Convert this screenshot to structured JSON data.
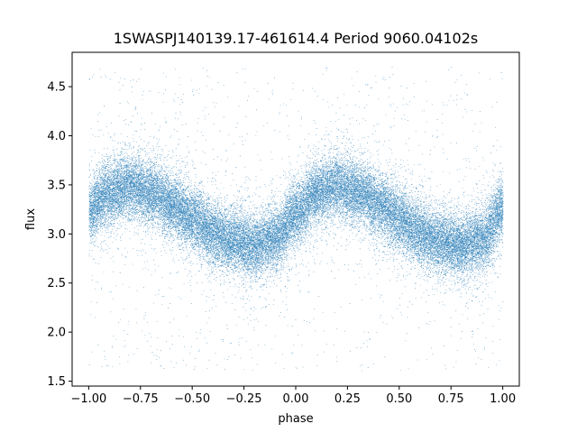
{
  "chart_data": {
    "type": "scatter",
    "title": "1SWASPJ140139.17-461614.4 Period 9060.04102s",
    "xlabel": "phase",
    "ylabel": "flux",
    "xlim": [
      -1.08,
      1.08
    ],
    "ylim": [
      1.45,
      4.85
    ],
    "xticks": [
      -1.0,
      -0.75,
      -0.5,
      -0.25,
      0.0,
      0.25,
      0.5,
      0.75,
      1.0
    ],
    "xtick_labels": [
      "−1.00",
      "−0.75",
      "−0.50",
      "−0.25",
      "0.00",
      "0.25",
      "0.50",
      "0.75",
      "1.00"
    ],
    "yticks": [
      1.5,
      2.0,
      2.5,
      3.0,
      3.5,
      4.0,
      4.5
    ],
    "ytick_labels": [
      "1.5",
      "2.0",
      "2.5",
      "3.0",
      "3.5",
      "4.0",
      "4.5"
    ],
    "grid": false,
    "point_color": "#1f77b4",
    "series": [
      {
        "phase_range": [
          -1.0,
          1.0
        ],
        "curve_phase": [
          -1.0,
          -0.9,
          -0.8,
          -0.7,
          -0.6,
          -0.5,
          -0.4,
          -0.3,
          -0.2,
          -0.1,
          0.0,
          0.1,
          0.2,
          0.3,
          0.4,
          0.5,
          0.6,
          0.7,
          0.8,
          0.9,
          1.0
        ],
        "curve_flux": [
          3.25,
          3.42,
          3.48,
          3.42,
          3.3,
          3.15,
          3.0,
          2.92,
          2.88,
          2.95,
          3.2,
          3.42,
          3.48,
          3.42,
          3.3,
          3.15,
          3.0,
          2.92,
          2.88,
          2.95,
          3.25
        ],
        "scatter_sd": 0.15,
        "n_points": 40000,
        "outlier_flux_range": [
          1.6,
          4.7
        ]
      }
    ]
  }
}
